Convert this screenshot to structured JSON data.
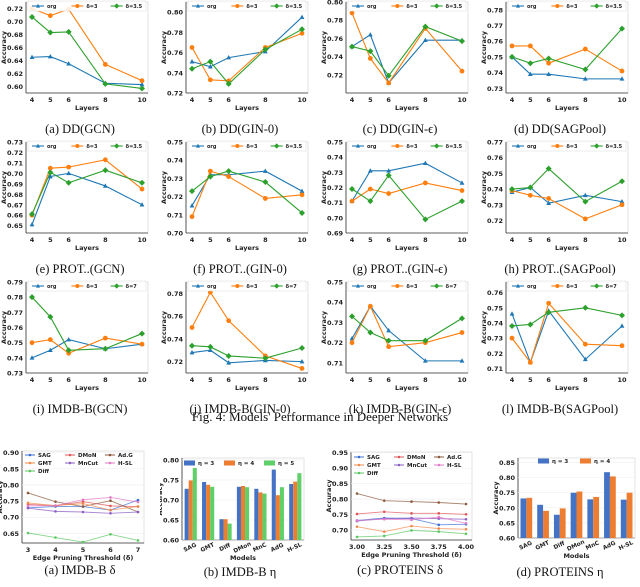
{
  "figure_caption": "Fig. 4: Models' Performance in Deeper Networks",
  "chart_data": [
    {
      "id": "a",
      "type": "line",
      "caption": "(a) DD(GCN)",
      "xlabel": "Layers",
      "ylabel": "Accuracy",
      "x": [
        4,
        5,
        6,
        8,
        10
      ],
      "ylim": [
        0.59,
        0.73
      ],
      "yticks": [
        0.6,
        0.62,
        0.64,
        0.66,
        0.68,
        0.7,
        0.72
      ],
      "series": [
        {
          "name": "org",
          "values": [
            0.645,
            0.646,
            0.635,
            0.605,
            0.603
          ]
        },
        {
          "name": "δ=3",
          "values": [
            0.72,
            0.709,
            0.719,
            0.634,
            0.609
          ]
        },
        {
          "name": "δ=3.5",
          "values": [
            0.707,
            0.683,
            0.684,
            0.604,
            0.597
          ]
        }
      ]
    },
    {
      "id": "b",
      "type": "line",
      "caption": "(b) DD(GIN-0)",
      "xlabel": "Layers",
      "ylabel": "Accuracy",
      "x": [
        4,
        5,
        6,
        8,
        10
      ],
      "ylim": [
        0.72,
        0.81
      ],
      "yticks": [
        0.72,
        0.74,
        0.76,
        0.78,
        0.8
      ],
      "series": [
        {
          "name": "org",
          "values": [
            0.751,
            0.746,
            0.755,
            0.761,
            0.795
          ]
        },
        {
          "name": "δ=3",
          "values": [
            0.765,
            0.733,
            0.732,
            0.765,
            0.779
          ]
        },
        {
          "name": "δ=3.5",
          "values": [
            0.744,
            0.751,
            0.729,
            0.763,
            0.783
          ]
        }
      ]
    },
    {
      "id": "c",
      "type": "line",
      "caption": "(c) DD(GIN-ϵ)",
      "xlabel": "Layers",
      "ylabel": "Accuracy",
      "x": [
        4,
        5,
        6,
        8,
        10
      ],
      "ylim": [
        0.7,
        0.8
      ],
      "yticks": [
        0.72,
        0.74,
        0.76,
        0.78,
        0.8
      ],
      "series": [
        {
          "name": "org",
          "values": [
            0.751,
            0.764,
            0.711,
            0.758,
            0.758
          ]
        },
        {
          "name": "δ=3",
          "values": [
            0.788,
            0.738,
            0.711,
            0.771,
            0.724
          ]
        },
        {
          "name": "δ=3.5",
          "values": [
            0.751,
            0.746,
            0.719,
            0.773,
            0.757
          ]
        }
      ]
    },
    {
      "id": "d",
      "type": "line",
      "caption": "(d) DD(SAGPool)",
      "xlabel": "Layers",
      "ylabel": "Accuracy",
      "x": [
        4,
        5,
        6,
        8,
        10
      ],
      "ylim": [
        0.727,
        0.785
      ],
      "yticks": [
        0.73,
        0.74,
        0.75,
        0.76,
        0.77,
        0.78
      ],
      "series": [
        {
          "name": "org",
          "values": [
            0.75,
            0.739,
            0.739,
            0.736,
            0.736
          ]
        },
        {
          "name": "δ=3",
          "values": [
            0.757,
            0.757,
            0.746,
            0.755,
            0.741
          ]
        },
        {
          "name": "δ=3.5",
          "values": [
            0.75,
            0.746,
            0.749,
            0.742,
            0.768
          ]
        }
      ]
    },
    {
      "id": "e",
      "type": "line",
      "caption": "(e) PROT..(GCN)",
      "xlabel": "Layers",
      "ylabel": "Accuracy",
      "x": [
        4,
        5,
        6,
        8,
        10
      ],
      "ylim": [
        0.643,
        0.73
      ],
      "yticks": [
        0.65,
        0.66,
        0.67,
        0.68,
        0.69,
        0.7,
        0.71,
        0.72,
        0.73
      ],
      "series": [
        {
          "name": "org",
          "values": [
            0.651,
            0.697,
            0.7,
            0.688,
            0.67
          ]
        },
        {
          "name": "δ=3",
          "values": [
            0.66,
            0.705,
            0.706,
            0.713,
            0.685
          ]
        },
        {
          "name": "δ=3.5",
          "values": [
            0.661,
            0.701,
            0.691,
            0.703,
            0.691
          ]
        }
      ]
    },
    {
      "id": "f",
      "type": "line",
      "caption": "(f) PROT..(GIN-0)",
      "xlabel": "Layers",
      "ylabel": "Accuracy",
      "x": [
        4,
        5,
        6,
        8,
        10
      ],
      "ylim": [
        0.7,
        0.75
      ],
      "yticks": [
        0.7,
        0.71,
        0.72,
        0.73,
        0.74,
        0.75
      ],
      "series": [
        {
          "name": "org",
          "values": [
            0.715,
            0.732,
            0.732,
            0.734,
            0.723
          ]
        },
        {
          "name": "δ=3",
          "values": [
            0.709,
            0.734,
            0.731,
            0.719,
            0.721
          ]
        },
        {
          "name": "δ=3.5",
          "values": [
            0.723,
            0.731,
            0.734,
            0.728,
            0.711
          ]
        }
      ]
    },
    {
      "id": "g",
      "type": "line",
      "caption": "(g) PROT..(GIN-ϵ)",
      "xlabel": "Layers",
      "ylabel": "Accuracy",
      "x": [
        4,
        5,
        6,
        8,
        10
      ],
      "ylim": [
        0.69,
        0.75
      ],
      "yticks": [
        0.69,
        0.7,
        0.71,
        0.72,
        0.73,
        0.74,
        0.75
      ],
      "series": [
        {
          "name": "org",
          "values": [
            0.711,
            0.731,
            0.731,
            0.736,
            0.723
          ]
        },
        {
          "name": "δ=3",
          "values": [
            0.711,
            0.719,
            0.716,
            0.723,
            0.718
          ]
        },
        {
          "name": "δ=3.5",
          "values": [
            0.719,
            0.711,
            0.728,
            0.699,
            0.711
          ]
        }
      ]
    },
    {
      "id": "h",
      "type": "line",
      "caption": "(h) PROT..(SAGPool)",
      "xlabel": "Layers",
      "ylabel": "Accuracy",
      "x": [
        4,
        5,
        6,
        8,
        10
      ],
      "ylim": [
        0.712,
        0.77
      ],
      "yticks": [
        0.72,
        0.73,
        0.74,
        0.75,
        0.76,
        0.77
      ],
      "series": [
        {
          "name": "org",
          "values": [
            0.738,
            0.741,
            0.731,
            0.736,
            0.732
          ]
        },
        {
          "name": "δ=3",
          "values": [
            0.739,
            0.736,
            0.734,
            0.721,
            0.73
          ]
        },
        {
          "name": "δ=3.5",
          "values": [
            0.74,
            0.741,
            0.753,
            0.732,
            0.745
          ]
        }
      ]
    },
    {
      "id": "i",
      "type": "line",
      "caption": "(i) IMDB-B(GCN)",
      "xlabel": "Layers",
      "ylabel": "Accuracy",
      "x": [
        4,
        5,
        6,
        8,
        10
      ],
      "ylim": [
        0.73,
        0.79
      ],
      "yticks": [
        0.73,
        0.74,
        0.75,
        0.76,
        0.77,
        0.78,
        0.79
      ],
      "series": [
        {
          "name": "org",
          "values": [
            0.74,
            0.745,
            0.752,
            0.746,
            0.749
          ]
        },
        {
          "name": "δ=3",
          "values": [
            0.75,
            0.752,
            0.743,
            0.753,
            0.749
          ]
        },
        {
          "name": "δ=7",
          "values": [
            0.78,
            0.767,
            0.745,
            0.746,
            0.756
          ]
        }
      ]
    },
    {
      "id": "j",
      "type": "line",
      "caption": "(j) IMDB-B(GIN-0)",
      "xlabel": "Layers",
      "ylabel": "Accuracy",
      "x": [
        4,
        5,
        6,
        8,
        10
      ],
      "ylim": [
        0.71,
        0.79
      ],
      "yticks": [
        0.72,
        0.74,
        0.76,
        0.78
      ],
      "series": [
        {
          "name": "org",
          "values": [
            0.728,
            0.73,
            0.719,
            0.721,
            0.72
          ]
        },
        {
          "name": "δ=3",
          "values": [
            0.75,
            0.781,
            0.756,
            0.725,
            0.714
          ]
        },
        {
          "name": "δ=7",
          "values": [
            0.734,
            0.733,
            0.725,
            0.723,
            0.732
          ]
        }
      ]
    },
    {
      "id": "k",
      "type": "line",
      "caption": "(k) IMDB-B(GIN-ϵ)",
      "xlabel": "Layers",
      "ylabel": "Accuracy",
      "x": [
        4,
        5,
        6,
        8,
        10
      ],
      "ylim": [
        0.705,
        0.75
      ],
      "yticks": [
        0.71,
        0.72,
        0.73,
        0.74,
        0.75
      ],
      "series": [
        {
          "name": "org",
          "values": [
            0.722,
            0.738,
            0.726,
            0.711,
            0.711
          ]
        },
        {
          "name": "δ=3",
          "values": [
            0.72,
            0.738,
            0.718,
            0.72,
            0.725
          ]
        },
        {
          "name": "δ=7",
          "values": [
            0.733,
            0.725,
            0.721,
            0.721,
            0.732
          ]
        }
      ]
    },
    {
      "id": "l",
      "type": "line",
      "caption": "(l) IMDB-B(SAGPool)",
      "xlabel": "Layers",
      "ylabel": "Accuracy",
      "x": [
        4,
        5,
        6,
        8,
        10
      ],
      "ylim": [
        0.707,
        0.767
      ],
      "yticks": [
        0.71,
        0.72,
        0.73,
        0.74,
        0.75,
        0.76
      ],
      "series": [
        {
          "name": "org",
          "values": [
            0.746,
            0.714,
            0.748,
            0.716,
            0.738
          ]
        },
        {
          "name": "δ=3",
          "values": [
            0.73,
            0.714,
            0.753,
            0.726,
            0.725
          ]
        },
        {
          "name": "δ=7",
          "values": [
            0.738,
            0.739,
            0.747,
            0.75,
            0.745
          ]
        }
      ]
    },
    {
      "id": "m",
      "type": "line",
      "caption": "(a) IMDB-B δ",
      "xlabel": "Edge Pruning Threshold (δ)",
      "ylabel": "Accuracy",
      "x": [
        3,
        4,
        5,
        6,
        7
      ],
      "xticks": [
        "3",
        "4",
        "5",
        "6",
        "7"
      ],
      "ylim": [
        0.62,
        0.905
      ],
      "yticks": [
        0.65,
        0.7,
        0.75,
        0.8,
        0.85,
        0.9
      ],
      "series": [
        {
          "name": "SAG",
          "values": [
            0.729,
            0.733,
            0.733,
            0.722,
            0.753
          ]
        },
        {
          "name": "DMoN",
          "values": [
            0.74,
            0.735,
            0.748,
            0.735,
            0.733
          ]
        },
        {
          "name": "Ad.G",
          "values": [
            0.775,
            0.748,
            0.733,
            0.751,
            0.716
          ]
        },
        {
          "name": "GMT",
          "values": [
            0.744,
            0.736,
            0.742,
            0.722,
            0.733
          ]
        },
        {
          "name": "MnCut",
          "values": [
            0.728,
            0.718,
            0.716,
            0.712,
            0.716
          ]
        },
        {
          "name": "H-SL",
          "values": [
            0.735,
            0.736,
            0.754,
            0.761,
            0.747
          ]
        },
        {
          "name": "Diff",
          "values": [
            0.651,
            0.637,
            0.623,
            0.647,
            0.628
          ]
        }
      ]
    },
    {
      "id": "n",
      "type": "bar",
      "caption": "(b) IMDB-B η",
      "xlabel": "Models",
      "ylabel": "Accuracy",
      "categories": [
        "SAG",
        "GMT",
        "Diff",
        "DMon",
        "MnC",
        "AdG",
        "H-SL"
      ],
      "ylim": [
        0.6,
        0.805
      ],
      "yticks": [
        0.6,
        0.65,
        0.7,
        0.75,
        0.8
      ],
      "series": [
        {
          "name": "η = 3",
          "values": [
            0.728,
            0.745,
            0.652,
            0.733,
            0.728,
            0.776,
            0.74
          ]
        },
        {
          "name": "η = 4",
          "values": [
            0.749,
            0.738,
            0.652,
            0.735,
            0.719,
            0.712,
            0.746
          ]
        },
        {
          "name": "η = 5",
          "values": [
            0.78,
            0.733,
            0.641,
            0.732,
            0.716,
            0.732,
            0.767
          ]
        }
      ]
    },
    {
      "id": "o",
      "type": "line",
      "caption": "(c) PROTEINS δ",
      "xlabel": "Edge Pruning Threshold (δ)",
      "ylabel": "Accuracy",
      "x": [
        3.0,
        3.25,
        3.5,
        3.75,
        4.0
      ],
      "xticks": [
        "3.00",
        "3.25",
        "3.50",
        "3.75",
        "4.00"
      ],
      "ylim": [
        0.668,
        0.952
      ],
      "yticks": [
        0.7,
        0.75,
        0.8,
        0.85,
        0.9,
        0.95
      ],
      "series": [
        {
          "name": "SAG",
          "values": [
            0.731,
            0.739,
            0.737,
            0.717,
            0.719
          ]
        },
        {
          "name": "DMoN",
          "values": [
            0.752,
            0.759,
            0.754,
            0.754,
            0.751
          ]
        },
        {
          "name": "Ad.G",
          "values": [
            0.818,
            0.795,
            0.792,
            0.789,
            0.784
          ]
        },
        {
          "name": "GMT",
          "values": [
            0.711,
            0.695,
            0.713,
            0.705,
            0.703
          ]
        },
        {
          "name": "MnCut",
          "values": [
            0.729,
            0.737,
            0.739,
            0.737,
            0.735
          ]
        },
        {
          "name": "H-SL",
          "values": [
            0.731,
            0.735,
            0.733,
            0.742,
            0.722
          ]
        },
        {
          "name": "Diff",
          "values": [
            0.678,
            0.681,
            0.699,
            0.695,
            0.688
          ]
        }
      ]
    },
    {
      "id": "p",
      "type": "bar",
      "caption": "(d) PROTEINS η",
      "xlabel": "Models",
      "ylabel": "Accuracy",
      "categories": [
        "SAG",
        "GMT",
        "Diff",
        "DMon",
        "MnC",
        "AdG",
        "H-SL"
      ],
      "ylim": [
        0.6,
        0.865
      ],
      "yticks": [
        0.6,
        0.65,
        0.7,
        0.75,
        0.8,
        0.85
      ],
      "series": [
        {
          "name": "η = 3",
          "values": [
            0.731,
            0.71,
            0.677,
            0.75,
            0.728,
            0.818,
            0.727
          ]
        },
        {
          "name": "η = 4",
          "values": [
            0.733,
            0.69,
            0.698,
            0.754,
            0.736,
            0.804,
            0.75
          ]
        }
      ]
    }
  ],
  "colors": {
    "org": "#1f77b4",
    "δ=3": "#ff7f0e",
    "δ=3.5": "#2ca02c",
    "δ=7": "#2ca02c",
    "SAG": "#3b6fd6",
    "DMoN": "#e0575a",
    "Ad.G": "#8c5a3c",
    "GMT": "#f08a4b",
    "MnCut": "#8a5cc4",
    "H-SL": "#e07bc8",
    "Diff": "#59c760",
    "η = 3": "#4472c4",
    "η = 4": "#ed7d31",
    "η = 5": "#5fd068"
  }
}
